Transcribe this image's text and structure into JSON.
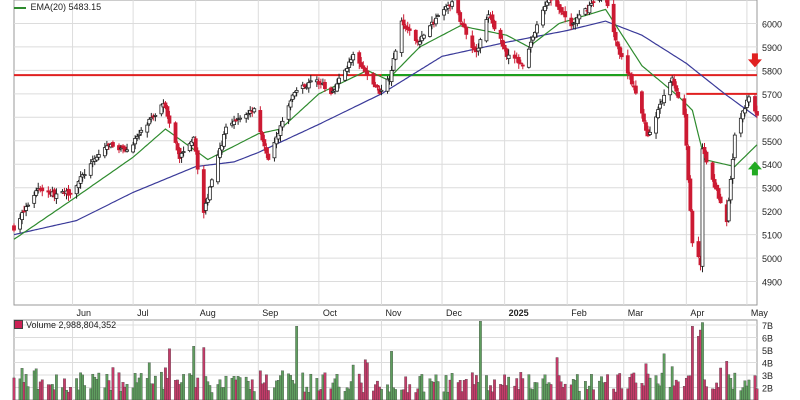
{
  "legend": {
    "ema_label": "EMA(20)",
    "ema_value": "5483.15",
    "ema_color": "#2e8b2e"
  },
  "volume_legend": {
    "label": "Volume",
    "value": "2,988,804,352"
  },
  "colors": {
    "up": "#ffffff",
    "down": "#cc1a33",
    "candle_edge": "#222222",
    "ema_fast": "#2e8b2e",
    "ema_slow": "#3a3a99",
    "resistance": "#e02020",
    "support": "#1ea01e",
    "vol_up": "#5f9e5f",
    "vol_down": "#c43c6a",
    "grid": "#dcdcdc"
  },
  "chart_data": {
    "type": "candlestick",
    "grid": true,
    "price_axis_labels": [
      "6000",
      "5900",
      "5800",
      "5700",
      "5600",
      "5500",
      "5400",
      "5300",
      "5200",
      "5100",
      "5000",
      "4900"
    ],
    "price_axis_values": [
      6000,
      5900,
      5800,
      5700,
      5600,
      5500,
      5400,
      5300,
      5200,
      5100,
      5000,
      4900
    ],
    "ylim": [
      4800,
      6100
    ],
    "x_tick_labels": [
      "Jun",
      "Jul",
      "Aug",
      "Sep",
      "Oct",
      "Nov",
      "Dec",
      "2025",
      "Feb",
      "Mar",
      "Apr",
      "May"
    ],
    "x_tick_dates": [
      "2024-06-01",
      "2024-07-01",
      "2024-08-01",
      "2024-09-01",
      "2024-10-01",
      "2024-11-01",
      "2024-12-01",
      "2025-01-01",
      "2025-02-01",
      "2025-03-01",
      "2025-04-01",
      "2025-05-01"
    ],
    "x_range": [
      "2024-05-03",
      "2025-05-06"
    ],
    "close_anchors": [
      [
        "2024-05-03",
        5130
      ],
      [
        "2024-05-15",
        5300
      ],
      [
        "2024-05-23",
        5270
      ],
      [
        "2024-05-31",
        5280
      ],
      [
        "2024-06-12",
        5420
      ],
      [
        "2024-06-18",
        5480
      ],
      [
        "2024-06-28",
        5460
      ],
      [
        "2024-07-08",
        5570
      ],
      [
        "2024-07-16",
        5660
      ],
      [
        "2024-07-24",
        5430
      ],
      [
        "2024-07-31",
        5520
      ],
      [
        "2024-08-05",
        5190
      ],
      [
        "2024-08-09",
        5340
      ],
      [
        "2024-08-16",
        5550
      ],
      [
        "2024-08-30",
        5640
      ],
      [
        "2024-09-06",
        5410
      ],
      [
        "2024-09-12",
        5560
      ],
      [
        "2024-09-19",
        5710
      ],
      [
        "2024-09-30",
        5760
      ],
      [
        "2024-10-07",
        5700
      ],
      [
        "2024-10-18",
        5860
      ],
      [
        "2024-10-31",
        5710
      ],
      [
        "2024-11-05",
        5770
      ],
      [
        "2024-11-11",
        6000
      ],
      [
        "2024-11-19",
        5920
      ],
      [
        "2024-11-29",
        6030
      ],
      [
        "2024-12-06",
        6090
      ],
      [
        "2024-12-18",
        5870
      ],
      [
        "2024-12-24",
        6040
      ],
      [
        "2025-01-02",
        5870
      ],
      [
        "2025-01-10",
        5830
      ],
      [
        "2025-01-23",
        6120
      ],
      [
        "2025-02-03",
        5990
      ],
      [
        "2025-02-19",
        6140
      ],
      [
        "2025-02-27",
        5870
      ],
      [
        "2025-03-04",
        5780
      ],
      [
        "2025-03-10",
        5615
      ],
      [
        "2025-03-13",
        5520
      ],
      [
        "2025-03-25",
        5770
      ],
      [
        "2025-03-31",
        5610
      ],
      [
        "2025-04-04",
        5070
      ],
      [
        "2025-04-08",
        4980
      ],
      [
        "2025-04-09",
        5460
      ],
      [
        "2025-04-21",
        5160
      ],
      [
        "2025-04-25",
        5520
      ],
      [
        "2025-05-02",
        5690
      ],
      [
        "2025-05-06",
        5610
      ]
    ],
    "ema_fast_anchors": [
      [
        "2024-05-03",
        5080
      ],
      [
        "2024-06-01",
        5250
      ],
      [
        "2024-07-01",
        5430
      ],
      [
        "2024-07-17",
        5550
      ],
      [
        "2024-08-07",
        5420
      ],
      [
        "2024-09-01",
        5530
      ],
      [
        "2024-09-12",
        5550
      ],
      [
        "2024-10-01",
        5700
      ],
      [
        "2024-10-25",
        5800
      ],
      [
        "2024-11-04",
        5760
      ],
      [
        "2024-11-20",
        5900
      ],
      [
        "2024-12-10",
        5990
      ],
      [
        "2025-01-02",
        5950
      ],
      [
        "2025-01-13",
        5900
      ],
      [
        "2025-01-28",
        6000
      ],
      [
        "2025-02-20",
        6060
      ],
      [
        "2025-03-10",
        5820
      ],
      [
        "2025-03-28",
        5690
      ],
      [
        "2025-04-04",
        5630
      ],
      [
        "2025-04-10",
        5420
      ],
      [
        "2025-04-25",
        5390
      ],
      [
        "2025-05-06",
        5483
      ]
    ],
    "ema_slow_anchors": [
      [
        "2024-05-03",
        5100
      ],
      [
        "2024-06-03",
        5160
      ],
      [
        "2024-07-01",
        5280
      ],
      [
        "2024-08-01",
        5390
      ],
      [
        "2024-08-20",
        5410
      ],
      [
        "2024-09-01",
        5450
      ],
      [
        "2024-10-01",
        5570
      ],
      [
        "2024-11-01",
        5700
      ],
      [
        "2024-12-01",
        5860
      ],
      [
        "2025-01-02",
        5920
      ],
      [
        "2025-02-01",
        5970
      ],
      [
        "2025-02-20",
        6010
      ],
      [
        "2025-03-10",
        5950
      ],
      [
        "2025-04-01",
        5830
      ],
      [
        "2025-04-20",
        5700
      ],
      [
        "2025-05-06",
        5600
      ]
    ],
    "resistance_level": 5780,
    "support_level": 5780,
    "support_range": [
      "2024-11-01",
      "2025-03-04"
    ],
    "upper_resistance_level": 5700,
    "upper_resistance_start": "2025-04-01",
    "annotations": [
      {
        "kind": "arrow-down",
        "date": "2025-05-02",
        "value": 5830,
        "color": "#e02020"
      },
      {
        "kind": "arrow-up",
        "date": "2025-05-02",
        "value": 5395,
        "color": "#22aa22"
      }
    ],
    "volume_axis_labels": [
      "7B",
      "6B",
      "5B",
      "4B",
      "3B",
      "2B"
    ],
    "volume_axis_values": [
      7,
      6,
      5,
      4,
      3,
      2
    ],
    "volume_ylim": [
      1,
      7.4
    ],
    "volume_spikes": [
      [
        "2024-06-21",
        3.6
      ],
      [
        "2024-07-19",
        5.1
      ],
      [
        "2024-07-31",
        5.3
      ],
      [
        "2024-08-05",
        5.2
      ],
      [
        "2024-09-20",
        6.9
      ],
      [
        "2024-10-18",
        3.8
      ],
      [
        "2024-11-06",
        4.9
      ],
      [
        "2024-12-20",
        7.3
      ],
      [
        "2025-01-27",
        4.4
      ],
      [
        "2025-03-21",
        4.7
      ],
      [
        "2025-04-04",
        6.9
      ],
      [
        "2025-04-07",
        6.1
      ],
      [
        "2025-04-08",
        6.6
      ],
      [
        "2025-04-09",
        7.2
      ],
      [
        "2025-04-21",
        4.1
      ]
    ]
  }
}
